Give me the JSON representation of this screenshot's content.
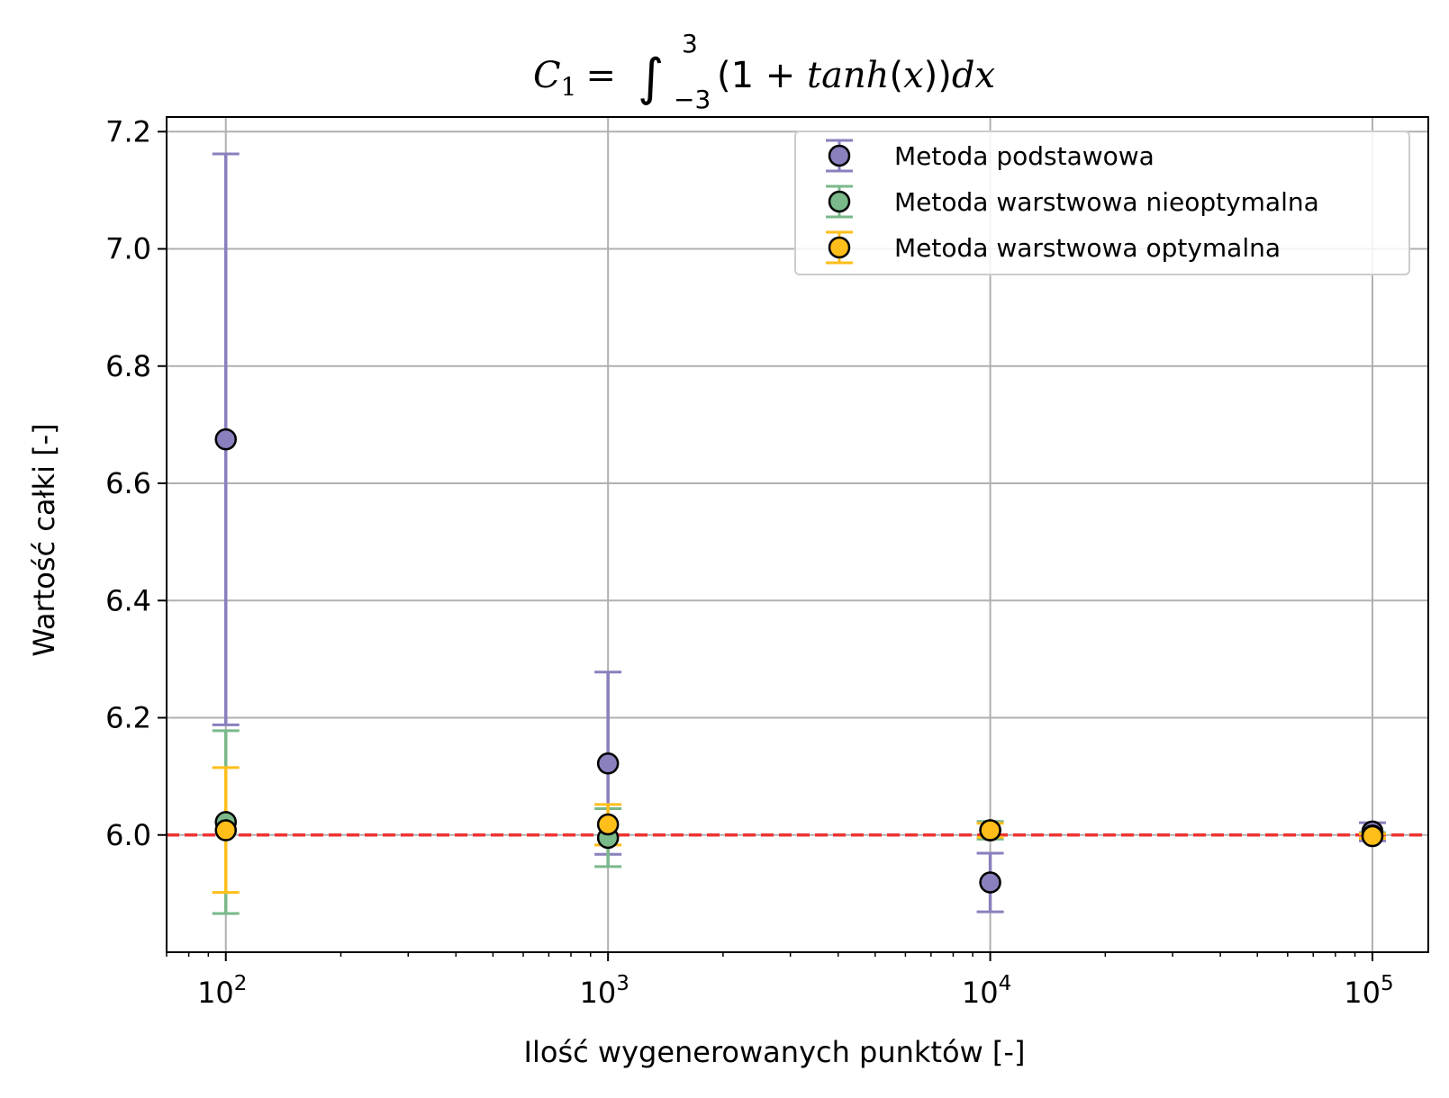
{
  "chart_data": {
    "type": "scatter",
    "title": {
      "lhs_var": "C",
      "lhs_sub": "1",
      "eq": "=",
      "integral": "∫",
      "upper": "3",
      "lower": "−3",
      "body_pre": "(1 + ",
      "body_func": "tanh",
      "body_arg_open": "(",
      "body_arg": "x",
      "body_arg_close": "))",
      "body_d": "dx"
    },
    "xlabel": "Ilość wygenerowanych punktów [-]",
    "ylabel": "Wartość całki [-]",
    "x_scale": "log",
    "xlim": [
      70,
      140000
    ],
    "ylim": [
      5.8,
      7.225
    ],
    "x_ticks": [
      {
        "value": 100,
        "base": "10",
        "exp": "2"
      },
      {
        "value": 1000,
        "base": "10",
        "exp": "3"
      },
      {
        "value": 10000,
        "base": "10",
        "exp": "4"
      },
      {
        "value": 100000,
        "base": "10",
        "exp": "5"
      }
    ],
    "y_ticks": [
      {
        "value": 6.0,
        "label": "6.0"
      },
      {
        "value": 6.2,
        "label": "6.2"
      },
      {
        "value": 6.4,
        "label": "6.4"
      },
      {
        "value": 6.6,
        "label": "6.6"
      },
      {
        "value": 6.8,
        "label": "6.8"
      },
      {
        "value": 7.0,
        "label": "7.0"
      },
      {
        "value": 7.2,
        "label": "7.2"
      }
    ],
    "grid": true,
    "legend_position": "top-right",
    "reference_line": {
      "y": 6.0,
      "color": "#ee3333",
      "style": "dashed"
    },
    "series": [
      {
        "name": "Metoda podstawowa",
        "color": "#8a80bd",
        "points": [
          {
            "x": 100,
            "y": 6.675,
            "err_low": 6.188,
            "err_high": 7.162
          },
          {
            "x": 1000,
            "y": 6.122,
            "err_low": 5.967,
            "err_high": 6.278
          },
          {
            "x": 10000,
            "y": 5.919,
            "err_low": 5.869,
            "err_high": 5.969
          },
          {
            "x": 100000,
            "y": 6.006,
            "err_low": 5.99,
            "err_high": 6.021
          }
        ]
      },
      {
        "name": "Metoda warstwowa nieoptymalna",
        "color": "#7ab98a",
        "points": [
          {
            "x": 100,
            "y": 6.022,
            "err_low": 5.866,
            "err_high": 6.178
          },
          {
            "x": 1000,
            "y": 5.995,
            "err_low": 5.946,
            "err_high": 6.045
          },
          {
            "x": 10000,
            "y": 6.008,
            "err_low": 5.993,
            "err_high": 6.023
          },
          {
            "x": 100000,
            "y": 5.999,
            "err_low": 5.994,
            "err_high": 6.004
          }
        ]
      },
      {
        "name": "Metoda warstwowa optymalna",
        "color": "#ffbe1a",
        "points": [
          {
            "x": 100,
            "y": 6.008,
            "err_low": 5.902,
            "err_high": 6.115
          },
          {
            "x": 1000,
            "y": 6.018,
            "err_low": 5.983,
            "err_high": 6.052
          },
          {
            "x": 10000,
            "y": 6.008,
            "err_low": 5.996,
            "err_high": 6.02
          },
          {
            "x": 100000,
            "y": 5.998,
            "err_low": 5.994,
            "err_high": 6.002
          }
        ]
      }
    ]
  }
}
